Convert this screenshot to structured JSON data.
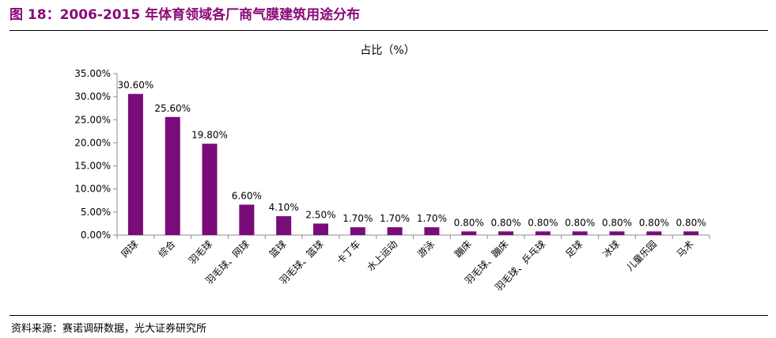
{
  "figure_title": "图 18：2006-2015 年体育领域各厂商气膜建筑用途分布",
  "source_note": "资料来源：赛诺调研数据，光大证券研究所",
  "colors": {
    "title": "#8b0a78",
    "bar": "#7a0c7a",
    "axis": "#8c8c8c",
    "rule": "#000000"
  },
  "chart_data": {
    "type": "bar",
    "title": "占比（%）",
    "xlabel": "",
    "ylabel": "",
    "ylim": [
      0,
      35
    ],
    "ytick_values": [
      0,
      5,
      10,
      15,
      20,
      25,
      30,
      35
    ],
    "yticks": [
      "0.00%",
      "5.00%",
      "10.00%",
      "15.00%",
      "20.00%",
      "25.00%",
      "30.00%",
      "35.00%"
    ],
    "grid": false,
    "legend": "none",
    "categories": [
      "网球",
      "综合",
      "羽毛球",
      "羽毛球、网球",
      "篮球",
      "羽毛球、篮球",
      "卡丁车",
      "水上运动",
      "游泳",
      "蹦床",
      "羽毛球、蹦床",
      "羽毛球、乒乓球",
      "足球",
      "冰球",
      "儿童乐园",
      "马术"
    ],
    "values": [
      30.6,
      25.6,
      19.8,
      6.6,
      4.1,
      2.5,
      1.7,
      1.7,
      1.7,
      0.8,
      0.8,
      0.8,
      0.8,
      0.8,
      0.8,
      0.8
    ],
    "data_labels": [
      "30.60%",
      "25.60%",
      "19.80%",
      "6.60%",
      "4.10%",
      "2.50%",
      "1.70%",
      "1.70%",
      "1.70%",
      "0.80%",
      "0.80%",
      "0.80%",
      "0.80%",
      "0.80%",
      "0.80%",
      "0.80%"
    ]
  }
}
